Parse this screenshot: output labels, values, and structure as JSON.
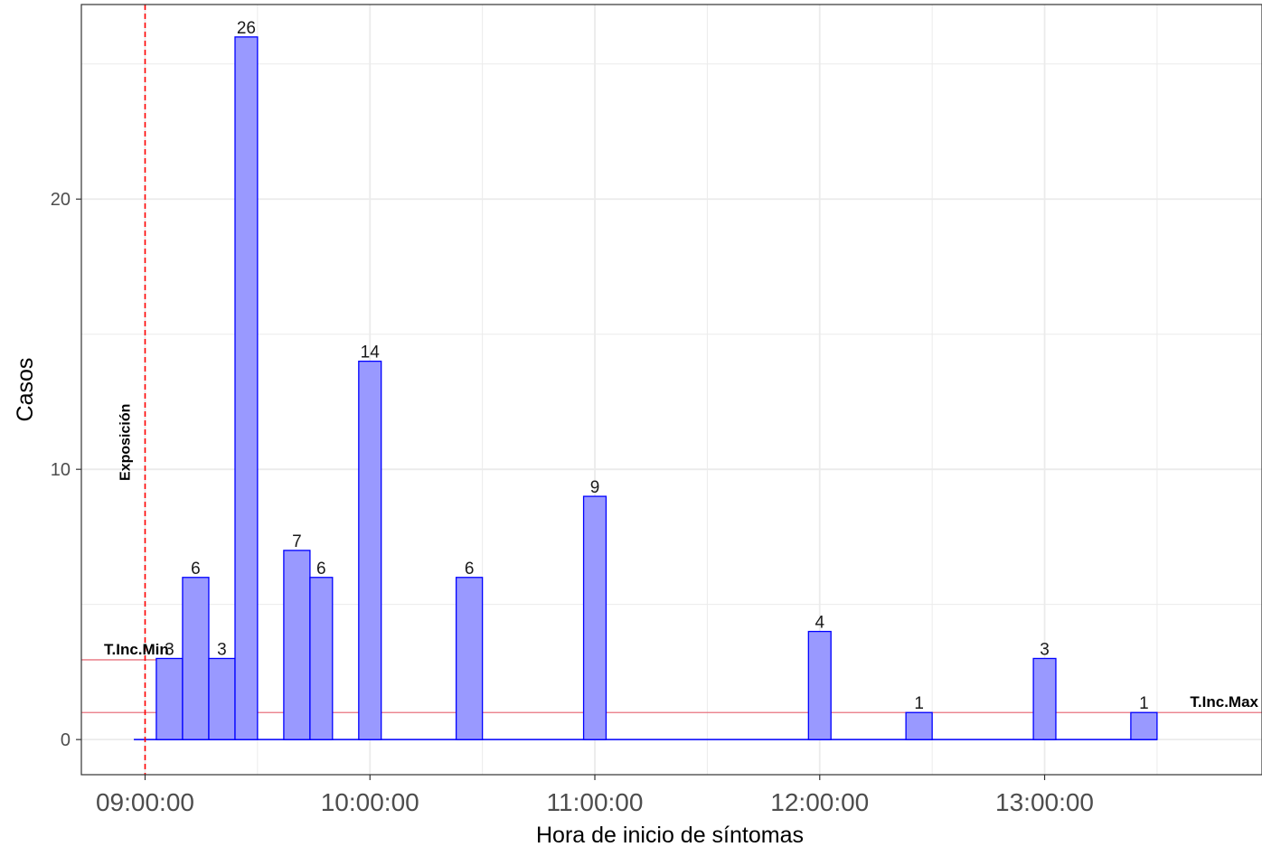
{
  "chart_data": {
    "type": "bar",
    "title": "",
    "xlabel": "Hora de inicio de síntomas",
    "ylabel": "Casos",
    "x_tick_labels": [
      "09:00:00",
      "10:00:00",
      "11:00:00",
      "12:00:00",
      "13:00:00"
    ],
    "y_tick_labels": [
      "0",
      "10",
      "20"
    ],
    "ylim": [
      -1.3,
      27.2
    ],
    "xlim": [
      "08:43:00",
      "13:58:00"
    ],
    "grid": true,
    "legend": "none",
    "bin_width_minutes": 6.7,
    "bars": [
      {
        "start": "09:03:00",
        "end": "09:10:00",
        "value": 3,
        "label": "3"
      },
      {
        "start": "09:10:00",
        "end": "09:17:00",
        "value": 6,
        "label": "6"
      },
      {
        "start": "09:17:00",
        "end": "09:24:00",
        "value": 3,
        "label": "3"
      },
      {
        "start": "09:24:00",
        "end": "09:30:00",
        "value": 26,
        "label": "26"
      },
      {
        "start": "09:37:00",
        "end": "09:44:00",
        "value": 7,
        "label": "7"
      },
      {
        "start": "09:44:00",
        "end": "09:50:00",
        "value": 6,
        "label": "6"
      },
      {
        "start": "09:57:00",
        "end": "10:03:00",
        "value": 14,
        "label": "14"
      },
      {
        "start": "10:23:00",
        "end": "10:30:00",
        "value": 6,
        "label": "6"
      },
      {
        "start": "10:57:00",
        "end": "11:03:00",
        "value": 9,
        "label": "9"
      },
      {
        "start": "11:57:00",
        "end": "12:03:00",
        "value": 4,
        "label": "4"
      },
      {
        "start": "12:23:00",
        "end": "12:30:00",
        "value": 1,
        "label": "1"
      },
      {
        "start": "12:57:00",
        "end": "13:03:00",
        "value": 3,
        "label": "3"
      },
      {
        "start": "13:23:00",
        "end": "13:30:00",
        "value": 1,
        "label": "1"
      }
    ],
    "zero_line": {
      "from": "08:57:00",
      "to": "13:30:00"
    },
    "exposure_line": {
      "time": "09:00:00",
      "label": "Exposición",
      "color": "#ff0000"
    },
    "incubation_min": {
      "label": "T.Inc.Min",
      "y": 2.95,
      "x_from": "08:43:00",
      "x_to": "09:10:00",
      "color": "#e8737f"
    },
    "incubation_max": {
      "label": "T.Inc.Max",
      "y": 1,
      "x_from": "08:43:00",
      "x_to": "13:58:00",
      "color": "#e8737f"
    },
    "colors": {
      "bar_fill": "#9999ff",
      "bar_stroke": "#0000ff",
      "grid": "#ebebeb",
      "panel_border": "#333333"
    }
  }
}
